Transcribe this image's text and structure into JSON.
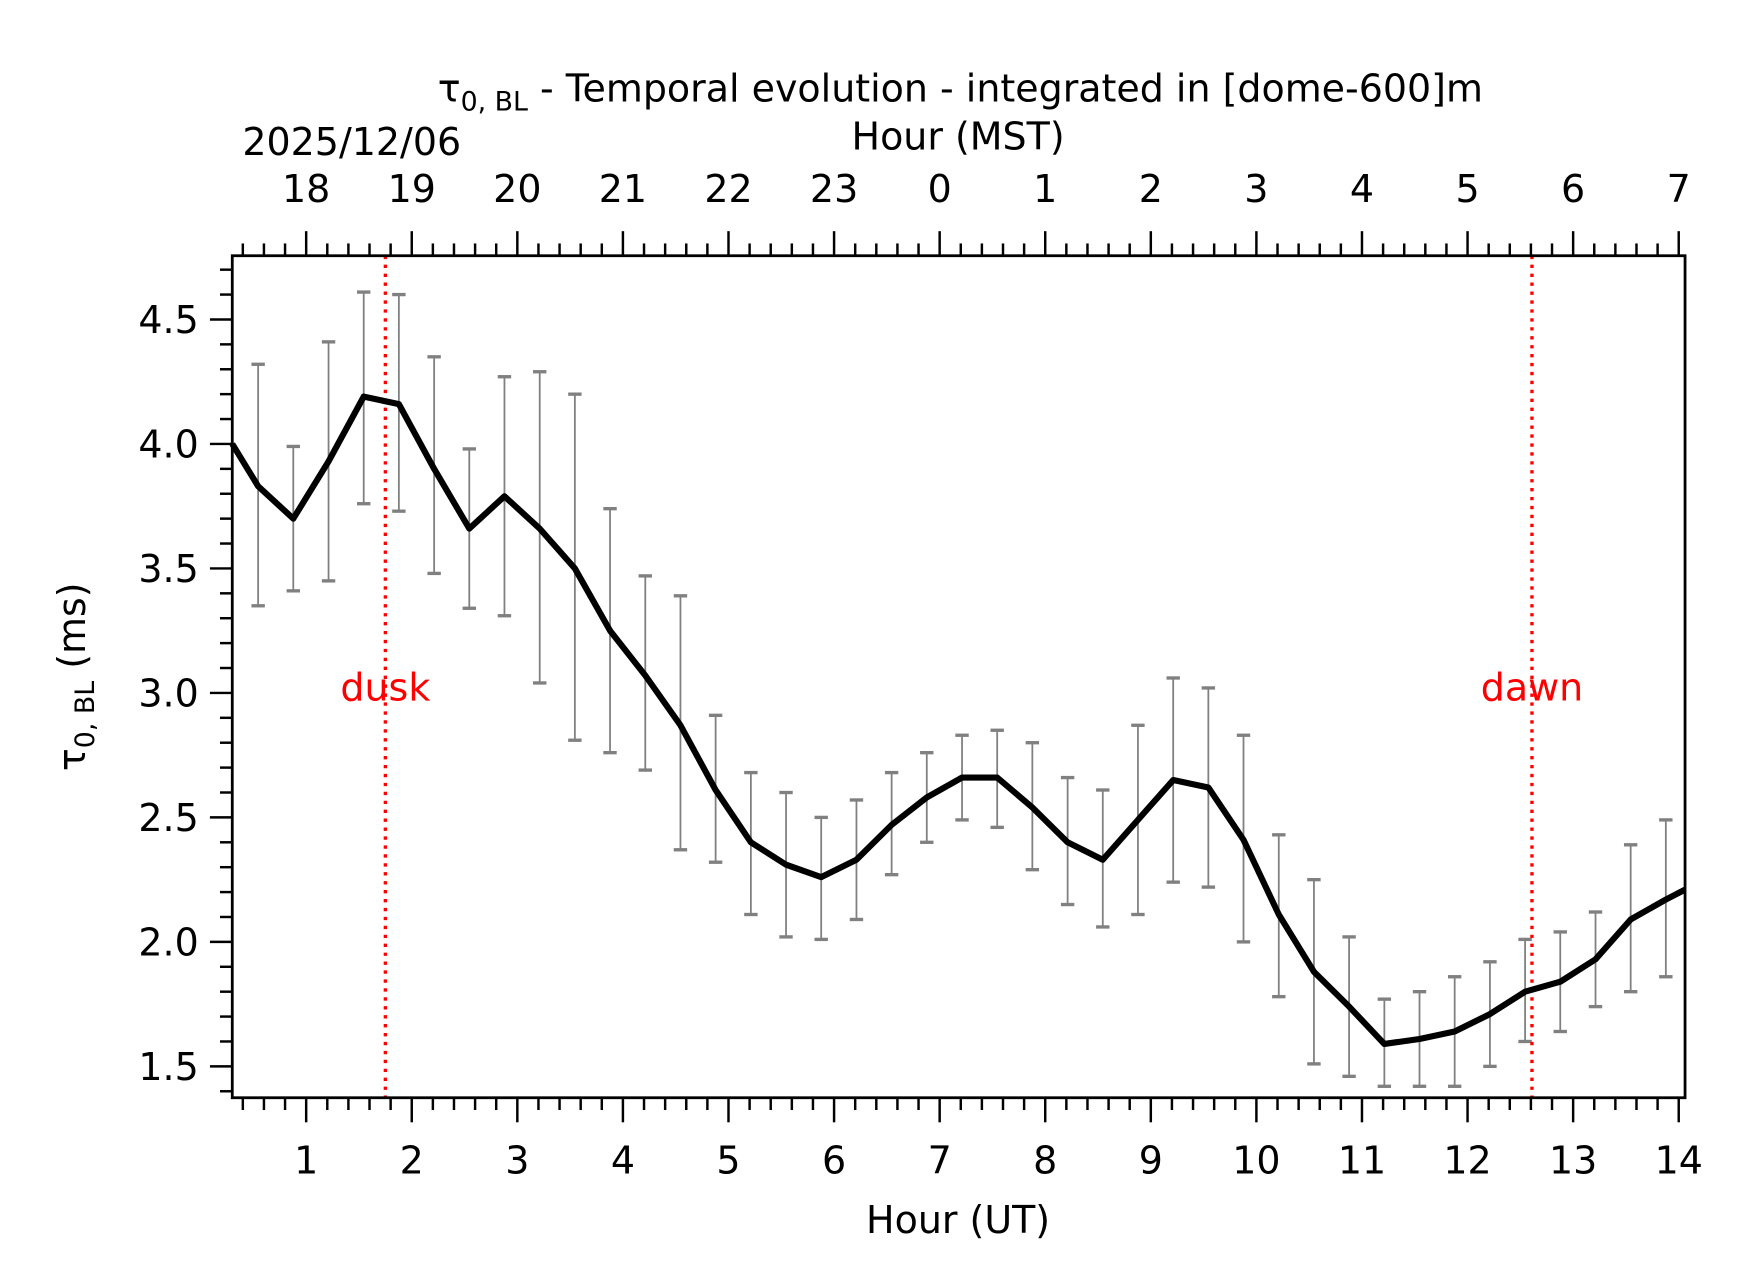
{
  "chart_data": {
    "type": "line",
    "title": {
      "symbol": "τ",
      "subscript": "0, BL",
      "text": " - Temporal evolution - integrated in [dome-600]m"
    },
    "date_label": "2025/12/06",
    "xlabel": "Hour (UT)",
    "x2label": "Hour (MST)",
    "ylabel": {
      "symbol": "τ",
      "subscript": "0, BL",
      "text": " (ms)"
    },
    "xlim": [
      0.3,
      14.06
    ],
    "ylim": [
      1.374,
      4.756
    ],
    "x_ticks": [
      1,
      2,
      3,
      4,
      5,
      6,
      7,
      8,
      9,
      10,
      11,
      12,
      13,
      14
    ],
    "x_tick_labels": [
      "1",
      "2",
      "3",
      "4",
      "5",
      "6",
      "7",
      "8",
      "9",
      "10",
      "11",
      "12",
      "13",
      "14"
    ],
    "x2_offset_hours": -7,
    "x2_tick_labels": [
      "18",
      "19",
      "20",
      "21",
      "22",
      "23",
      "0",
      "1",
      "2",
      "3",
      "4",
      "5",
      "6",
      "7"
    ],
    "y_ticks": [
      1.5,
      2.0,
      2.5,
      3.0,
      3.5,
      4.0,
      4.5
    ],
    "y_tick_labels": [
      "1.5",
      "2.0",
      "2.5",
      "3.0",
      "3.5",
      "4.0",
      "4.5"
    ],
    "series": [
      {
        "name": "tau0_BL",
        "color": "#000000",
        "x": [
          0.3,
          0.545,
          0.878,
          1.212,
          1.545,
          1.878,
          2.212,
          2.545,
          2.878,
          3.212,
          3.545,
          3.878,
          4.212,
          4.545,
          4.878,
          5.212,
          5.545,
          5.878,
          6.212,
          6.545,
          6.878,
          7.212,
          7.545,
          7.878,
          8.212,
          8.545,
          8.878,
          9.212,
          9.545,
          9.878,
          10.212,
          10.545,
          10.878,
          11.212,
          11.545,
          11.878,
          12.212,
          12.545,
          12.878,
          13.212,
          13.545,
          13.878,
          14.06
        ],
        "y": [
          4.0,
          3.83,
          3.7,
          3.93,
          4.19,
          4.16,
          3.9,
          3.66,
          3.79,
          3.66,
          3.5,
          3.25,
          3.07,
          2.87,
          2.61,
          2.4,
          2.31,
          2.26,
          2.33,
          2.47,
          2.58,
          2.66,
          2.66,
          2.54,
          2.4,
          2.33,
          2.49,
          2.65,
          2.62,
          2.41,
          2.11,
          1.88,
          1.74,
          1.59,
          1.61,
          1.64,
          1.71,
          1.8,
          1.84,
          1.93,
          2.09,
          2.17,
          2.21
        ],
        "err_low": [
          null,
          3.35,
          3.41,
          3.45,
          3.76,
          3.73,
          3.48,
          3.34,
          3.31,
          3.04,
          2.81,
          2.76,
          2.69,
          2.37,
          2.32,
          2.11,
          2.02,
          2.01,
          2.09,
          2.27,
          2.4,
          2.49,
          2.46,
          2.29,
          2.15,
          2.06,
          2.11,
          2.24,
          2.22,
          2.0,
          1.78,
          1.51,
          1.46,
          1.42,
          1.42,
          1.42,
          1.5,
          1.6,
          1.64,
          1.74,
          1.8,
          1.86,
          null
        ],
        "err_high": [
          null,
          4.32,
          3.99,
          4.41,
          4.61,
          4.6,
          4.35,
          3.98,
          4.27,
          4.29,
          4.2,
          3.74,
          3.47,
          3.39,
          2.91,
          2.68,
          2.6,
          2.5,
          2.57,
          2.68,
          2.76,
          2.83,
          2.85,
          2.8,
          2.66,
          2.61,
          2.87,
          3.06,
          3.02,
          2.83,
          2.43,
          2.25,
          2.02,
          1.77,
          1.8,
          1.86,
          1.92,
          2.01,
          2.04,
          2.12,
          2.39,
          2.49,
          null
        ],
        "err_color": "#808080"
      }
    ],
    "annotations": [
      {
        "label": "dusk",
        "x": 1.75,
        "y": 3.05,
        "color": "#ff0000"
      },
      {
        "label": "dawn",
        "x": 12.61,
        "y": 3.05,
        "color": "#ff0000"
      }
    ],
    "grid": false,
    "legend": "none"
  }
}
